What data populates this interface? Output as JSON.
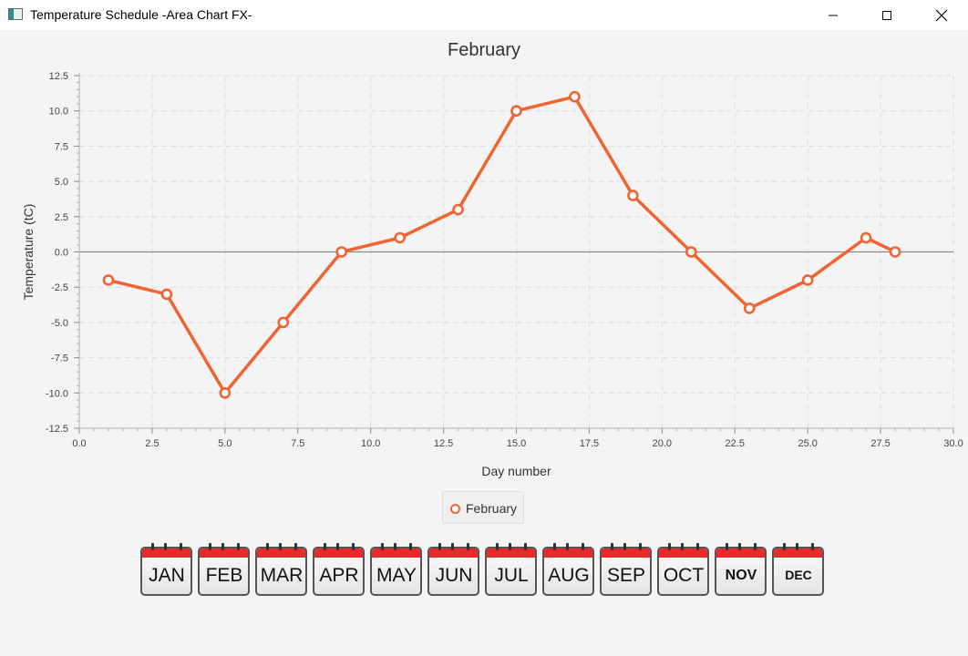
{
  "window": {
    "title": "Temperature Schedule -Area Chart FX-"
  },
  "chart_data": {
    "type": "line",
    "title": "February",
    "xlabel": "Day number",
    "ylabel": "Temperature (tC)",
    "xlim": [
      0,
      30
    ],
    "ylim": [
      -12.5,
      12.5
    ],
    "x_ticks": [
      "0.0",
      "2.5",
      "5.0",
      "7.5",
      "10.0",
      "12.5",
      "15.0",
      "17.5",
      "20.0",
      "22.5",
      "25.0",
      "27.5",
      "30.0"
    ],
    "y_ticks": [
      "12.5",
      "10.0",
      "7.5",
      "5.0",
      "2.5",
      "0.0",
      "-2.5",
      "-5.0",
      "-7.5",
      "-10.0",
      "-12.5"
    ],
    "grid": true,
    "legend_position": "bottom",
    "series": [
      {
        "name": "February",
        "color": "#f06433",
        "points": [
          [
            1,
            -2
          ],
          [
            3,
            -3
          ],
          [
            5,
            -10
          ],
          [
            7,
            -5
          ],
          [
            9,
            0
          ],
          [
            11,
            1
          ],
          [
            13,
            3
          ],
          [
            15,
            10
          ],
          [
            17,
            11
          ],
          [
            19,
            4
          ],
          [
            21,
            0
          ],
          [
            23,
            -4
          ],
          [
            25,
            -2
          ],
          [
            27,
            1
          ],
          [
            28,
            0
          ]
        ]
      }
    ]
  },
  "months": [
    "JAN",
    "FEB",
    "MAR",
    "APR",
    "MAY",
    "JUN",
    "JUL",
    "AUG",
    "SEP",
    "OCT",
    "NOV",
    "DEC"
  ]
}
